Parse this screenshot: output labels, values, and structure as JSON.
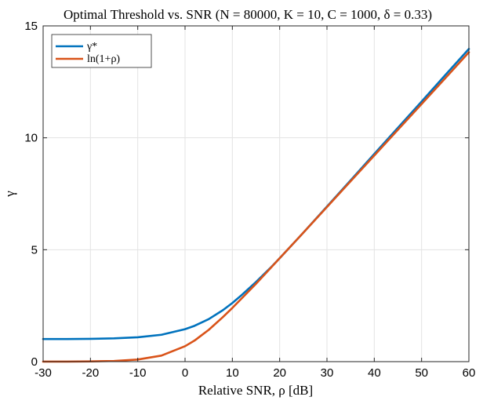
{
  "chart_data": {
    "type": "line",
    "title": "Optimal Threshold vs. SNR (N = 80000,  K = 10,  C = 1000,  δ = 0.33)",
    "xlabel": "Relative SNR, ρ [dB]",
    "ylabel": "γ",
    "xlim": [
      -30,
      60
    ],
    "ylim": [
      0,
      15
    ],
    "xticks": [
      -30,
      -20,
      -10,
      0,
      10,
      20,
      30,
      40,
      50,
      60
    ],
    "yticks": [
      0,
      5,
      10,
      15
    ],
    "grid": true,
    "legend_position": "top-left",
    "series": [
      {
        "name": "γ*",
        "color": "#0072BD",
        "x": [
          -30,
          -25,
          -20,
          -15,
          -10,
          -5,
          0,
          2,
          5,
          8,
          10,
          12,
          15,
          18,
          20,
          25,
          30,
          35,
          40,
          45,
          50,
          55,
          60
        ],
        "y": [
          1.01,
          1.01,
          1.02,
          1.04,
          1.09,
          1.2,
          1.45,
          1.6,
          1.9,
          2.3,
          2.62,
          2.98,
          3.56,
          4.18,
          4.62,
          5.76,
          6.93,
          8.1,
          9.28,
          10.45,
          11.62,
          12.8,
          13.97
        ]
      },
      {
        "name": "ln(1+ρ)",
        "color": "#D95319",
        "x": [
          -30,
          -25,
          -20,
          -15,
          -10,
          -5,
          0,
          2,
          5,
          8,
          10,
          12,
          15,
          18,
          20,
          25,
          30,
          35,
          40,
          45,
          50,
          55,
          60
        ],
        "y": [
          0.001,
          0.003,
          0.01,
          0.031,
          0.095,
          0.27,
          0.69,
          0.94,
          1.42,
          1.99,
          2.4,
          2.83,
          3.48,
          4.16,
          4.62,
          5.76,
          6.91,
          8.06,
          9.21,
          10.36,
          11.51,
          12.66,
          13.82
        ]
      }
    ]
  }
}
